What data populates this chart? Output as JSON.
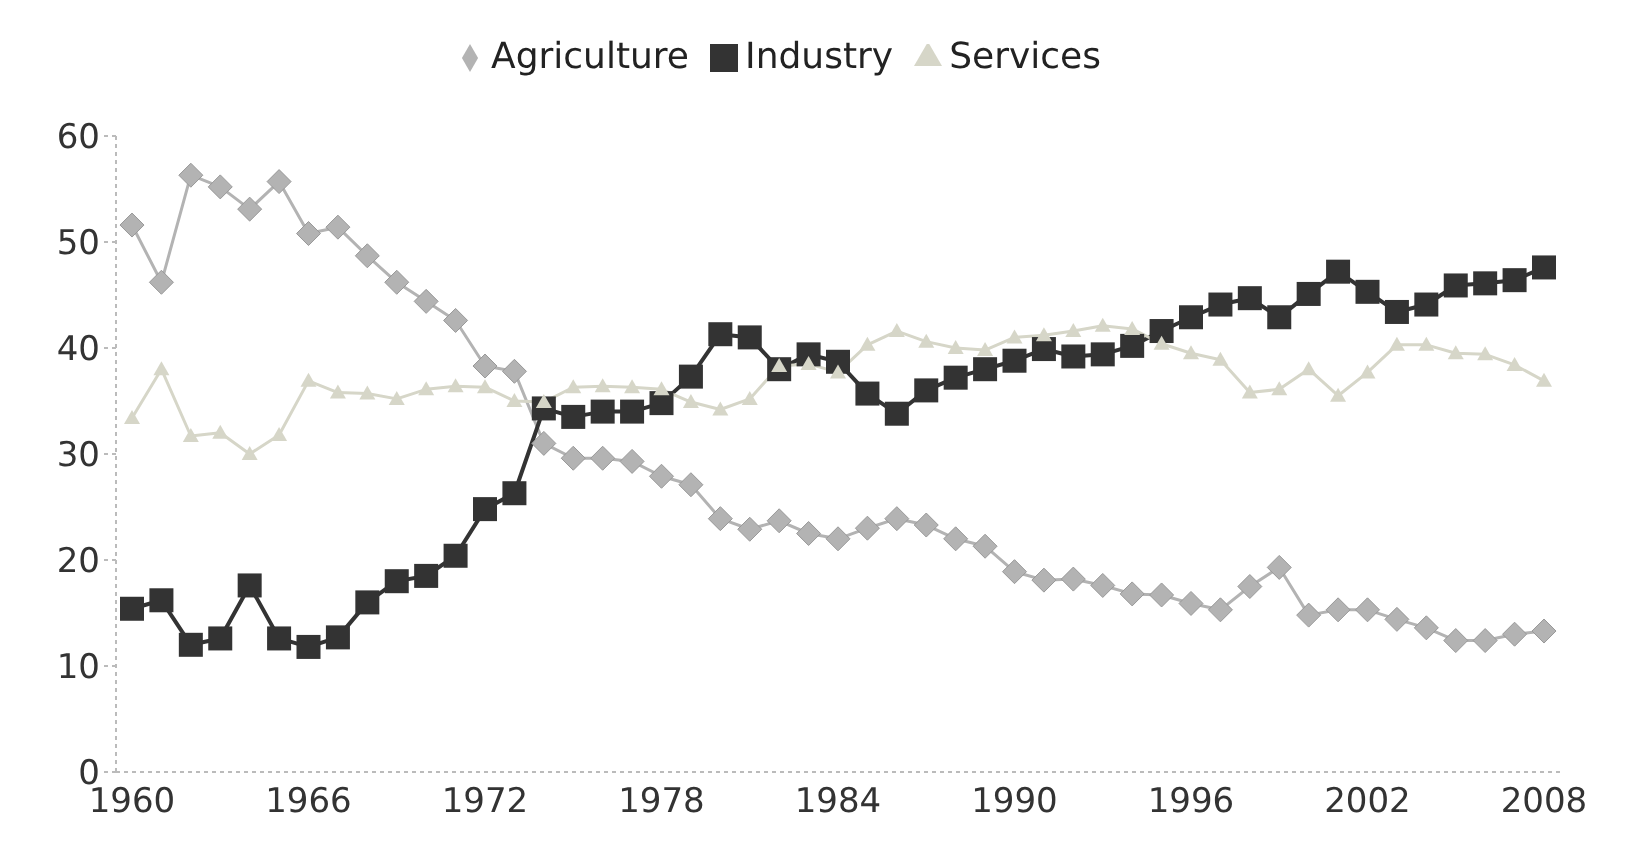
{
  "chart_data": {
    "type": "line",
    "categories": [
      "1960",
      null,
      null,
      null,
      null,
      null,
      "1966",
      null,
      null,
      null,
      null,
      null,
      "1972",
      null,
      null,
      null,
      null,
      null,
      "1978",
      null,
      null,
      null,
      null,
      null,
      "1984",
      null,
      null,
      null,
      null,
      null,
      "1990",
      null,
      null,
      null,
      null,
      null,
      "1996",
      null,
      null,
      null,
      null,
      null,
      "2002",
      null,
      null,
      null,
      null,
      null,
      "2008"
    ],
    "series": [
      {
        "name": "Agriculture",
        "color": "#b3b3b3",
        "marker": "diamond",
        "values": [
          51.6,
          46.2,
          56.3,
          55.2,
          53.1,
          55.7,
          50.8,
          51.4,
          48.7,
          46.2,
          44.4,
          42.6,
          38.3,
          37.8,
          31.0,
          29.6,
          29.6,
          29.3,
          27.9,
          27.1,
          23.9,
          22.9,
          23.7,
          22.5,
          22.0,
          23.0,
          23.9,
          23.3,
          22.0,
          21.3,
          18.9,
          18.1,
          18.2,
          17.6,
          16.8,
          16.7,
          15.9,
          15.3,
          17.5,
          19.3,
          14.8,
          15.3,
          15.3,
          14.4,
          13.6,
          12.4,
          12.4,
          13.0,
          13.3
        ]
      },
      {
        "name": "Industry",
        "color": "#333333",
        "marker": "square",
        "values": [
          15.4,
          16.2,
          12.0,
          12.6,
          17.6,
          12.6,
          11.8,
          12.7,
          16.0,
          18.0,
          18.5,
          20.4,
          24.8,
          26.3,
          34.3,
          33.5,
          34.0,
          34.0,
          34.8,
          37.3,
          41.3,
          41.0,
          38.0,
          39.4,
          38.7,
          35.7,
          33.8,
          36.0,
          37.2,
          38.0,
          38.8,
          39.9,
          39.2,
          39.4,
          40.2,
          41.6,
          42.9,
          44.1,
          44.7,
          42.9,
          45.1,
          47.2,
          45.3,
          43.4,
          44.1,
          45.9,
          46.1,
          46.4,
          47.6
        ]
      },
      {
        "name": "Services",
        "color": "#d6d6c8",
        "marker": "triangle",
        "values": [
          33.4,
          38.0,
          31.7,
          32.0,
          30.0,
          31.8,
          36.9,
          35.8,
          35.7,
          35.2,
          36.1,
          36.4,
          36.3,
          35.0,
          34.9,
          36.3,
          36.4,
          36.3,
          36.1,
          34.9,
          34.2,
          35.2,
          38.3,
          38.5,
          37.7,
          40.3,
          41.6,
          40.6,
          40.0,
          39.8,
          41.0,
          41.2,
          41.6,
          42.1,
          41.8,
          40.4,
          39.5,
          38.9,
          35.8,
          36.1,
          38.0,
          35.5,
          37.7,
          40.3,
          40.3,
          39.5,
          39.4,
          38.4,
          36.9
        ]
      }
    ],
    "ylim": [
      0,
      60
    ],
    "yticks": [
      0,
      10,
      20,
      30,
      40,
      50,
      60
    ],
    "grid": false,
    "legend": "top",
    "line_style": "solid"
  }
}
